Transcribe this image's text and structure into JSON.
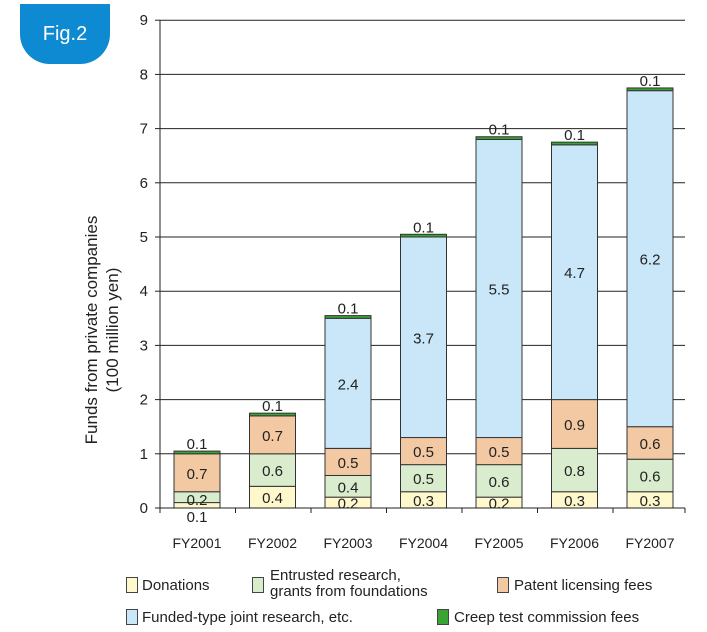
{
  "badge": {
    "label": "Fig.2",
    "color": "#0d8ad2"
  },
  "chart_data": {
    "type": "bar",
    "stacked": true,
    "categories": [
      "FY2001",
      "FY2002",
      "FY2003",
      "FY2004",
      "FY2005",
      "FY2006",
      "FY2007"
    ],
    "ylabel_line1": "Funds from private companies",
    "ylabel_line2": "(100 million yen)",
    "ylim": [
      0,
      9
    ],
    "yticks": [
      0,
      1,
      2,
      3,
      4,
      5,
      6,
      7,
      8,
      9
    ],
    "grid": true,
    "series": [
      {
        "name": "Donations",
        "color": "#fff8cc",
        "values": [
          0.1,
          0.4,
          0.2,
          0.3,
          0.2,
          0.3,
          0.3
        ],
        "labels": [
          "0.1",
          "0.4",
          "0.2",
          "0.3",
          "0.2",
          "0.3",
          "0.3"
        ]
      },
      {
        "name": "Entrusted research, grants from foundations",
        "color": "#d9eccd",
        "values": [
          0.2,
          0.6,
          0.4,
          0.5,
          0.6,
          0.8,
          0.6
        ],
        "labels": [
          "0.2",
          "0.6",
          "0.4",
          "0.5",
          "0.6",
          "0.8",
          "0.6"
        ]
      },
      {
        "name": "Patent licensing fees",
        "color": "#f3c9a3",
        "values": [
          0.7,
          0.7,
          0.5,
          0.5,
          0.5,
          0.9,
          0.6
        ],
        "labels": [
          "0.7",
          "0.7",
          "0.5",
          "0.5",
          "0.5",
          "0.9",
          "0.6"
        ]
      },
      {
        "name": "Funded-type joint research, etc.",
        "color": "#c9e7f8",
        "values": [
          0,
          0,
          2.4,
          3.7,
          5.5,
          4.7,
          6.2
        ],
        "labels": [
          "",
          "",
          "2.4",
          "3.7",
          "5.5",
          "4.7",
          "6.2"
        ]
      },
      {
        "name": "Creep test commission fees",
        "color": "#3aa334",
        "values": [
          0.05,
          0.05,
          0.05,
          0.05,
          0.05,
          0.05,
          0.05
        ],
        "labels": [
          "0.1",
          "0.1",
          "0.1",
          "0.1",
          "0.1",
          "0.1",
          "0.1"
        ]
      }
    ],
    "legend": {
      "donations": "Donations",
      "entrusted_line1": "Entrusted research,",
      "entrusted_line2": "grants from foundations",
      "patent": "Patent licensing fees",
      "funded": "Funded-type joint research, etc.",
      "creep": "Creep test commission fees"
    }
  }
}
